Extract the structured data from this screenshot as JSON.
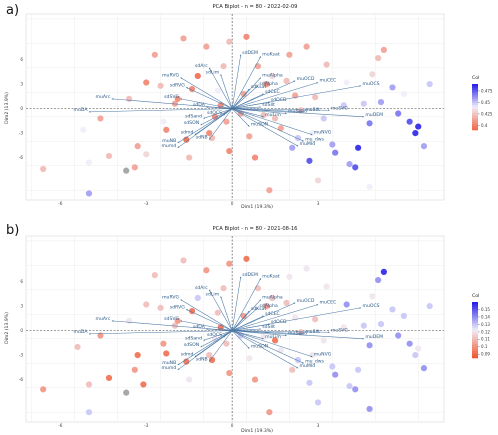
{
  "chart_data": [
    {
      "type": "scatter",
      "panel": "a)",
      "title": "PCA Biplot - n = 80 - 2022-02-09",
      "xlabel": "Dim1 (19.3%)",
      "ylabel": "Dim2 (13.9%)",
      "xlim": [
        -7.2,
        7.4
      ],
      "ylim": [
        -5.6,
        5.8
      ],
      "x_ticks": [
        -6,
        -3,
        0,
        3
      ],
      "y_ticks": [
        -6,
        -3,
        0,
        3,
        6
      ],
      "grid": true,
      "legend_title": "Col",
      "legend_position": "right",
      "legend_ticks": [
        0.475,
        0.45,
        0.425,
        0.4
      ],
      "color_range": [
        0.39,
        0.49
      ],
      "color_low": "#f16a4c",
      "color_high": "#2a22e8",
      "na_color": "#9e9e9e",
      "points": [
        [
          -6.6,
          -3.7,
          0.42
        ],
        [
          -5.2,
          -1.3,
          0.44
        ],
        [
          -5.0,
          -3.3,
          0.44
        ],
        [
          -5.0,
          -5.2,
          0.46
        ],
        [
          -4.6,
          -0.6,
          0.41
        ],
        [
          -4.3,
          -2.9,
          0.42
        ],
        [
          -3.7,
          -3.8,
          null
        ],
        [
          -3.4,
          -3.6,
          0.41
        ],
        [
          -3.3,
          -2.3,
          0.41
        ],
        [
          -3.0,
          -2.8,
          0.43
        ],
        [
          -3.0,
          1.6,
          0.4
        ],
        [
          -2.7,
          3.3,
          0.41
        ],
        [
          -2.5,
          1.4,
          0.42
        ],
        [
          -2.4,
          -0.8,
          0.44
        ],
        [
          -2.3,
          -1.3,
          0.4
        ],
        [
          -2.0,
          0.3,
          0.41
        ],
        [
          -1.9,
          0.6,
          0.4
        ],
        [
          -1.6,
          -1.9,
          0.39
        ],
        [
          -1.5,
          -3.0,
          0.42
        ],
        [
          -1.4,
          1.2,
          0.4
        ],
        [
          -1.2,
          2.0,
          0.39
        ],
        [
          -0.9,
          3.8,
          0.41
        ],
        [
          -0.8,
          -1.5,
          0.4
        ],
        [
          -0.7,
          -1.8,
          0.42
        ],
        [
          -0.6,
          -0.5,
          0.4
        ],
        [
          -0.5,
          1.1,
          0.44
        ],
        [
          -0.4,
          0.2,
          0.4
        ],
        [
          -0.2,
          -0.8,
          0.41
        ],
        [
          -0.1,
          -2.6,
          0.4
        ],
        [
          0.3,
          -0.3,
          0.41
        ],
        [
          0.5,
          4.4,
          0.4
        ],
        [
          0.6,
          -1.7,
          0.41
        ],
        [
          0.8,
          -3.0,
          0.4
        ],
        [
          0.9,
          2.6,
          0.41
        ],
        [
          1.1,
          -0.4,
          0.42
        ],
        [
          1.2,
          1.5,
          0.4
        ],
        [
          1.3,
          -5.0,
          0.41
        ],
        [
          1.4,
          2.0,
          0.43
        ],
        [
          1.5,
          -0.6,
          0.42
        ],
        [
          1.7,
          -1.2,
          0.41
        ],
        [
          2.0,
          3.3,
          0.41
        ],
        [
          2.1,
          -2.4,
          0.46
        ],
        [
          2.2,
          0.8,
          0.41
        ],
        [
          2.3,
          -1.8,
          0.45
        ],
        [
          2.4,
          -0.1,
          0.42
        ],
        [
          2.7,
          -3.2,
          0.48
        ],
        [
          2.8,
          -1.5,
          0.44
        ],
        [
          2.9,
          0.7,
          0.42
        ],
        [
          3.2,
          -0.6,
          0.45
        ],
        [
          3.3,
          2.7,
          0.42
        ],
        [
          3.5,
          -2.2,
          0.46
        ],
        [
          3.6,
          -2.7,
          0.47
        ],
        [
          3.9,
          0.2,
          0.45
        ],
        [
          4.0,
          1.6,
          0.44
        ],
        [
          4.1,
          -3.4,
          0.46
        ],
        [
          4.3,
          -3.6,
          0.48
        ],
        [
          4.4,
          -2.4,
          0.49
        ],
        [
          4.6,
          0.3,
          0.45
        ],
        [
          4.8,
          -0.9,
          0.47
        ],
        [
          4.9,
          2.1,
          0.43
        ],
        [
          5.2,
          0.4,
          0.46
        ],
        [
          5.3,
          3.6,
          0.41
        ],
        [
          5.6,
          1.3,
          0.46
        ],
        [
          5.8,
          -0.3,
          0.47
        ],
        [
          6.0,
          0.9,
          0.44
        ],
        [
          6.2,
          -0.8,
          0.48
        ],
        [
          6.4,
          -1.5,
          0.49
        ],
        [
          6.5,
          -1.1,
          0.49
        ],
        [
          6.7,
          -2.3,
          0.46
        ],
        [
          6.9,
          1.5,
          0.45
        ],
        [
          -0.1,
          4.1,
          0.42
        ],
        [
          -1.7,
          4.3,
          0.41
        ],
        [
          3.0,
          -4.4,
          0.43
        ],
        [
          4.8,
          -4.8,
          0.44
        ],
        [
          1.9,
          1.7,
          0.42
        ],
        [
          -3.6,
          0.6,
          0.42
        ],
        [
          0.4,
          0.9,
          0.41
        ],
        [
          -0.3,
          2.6,
          0.42
        ],
        [
          2.6,
          3.8,
          0.41
        ],
        [
          5.1,
          3.1,
          0.42
        ]
      ],
      "vectors": [
        {
          "label": "sdDEM",
          "x": 0.3,
          "y": 3.3
        },
        {
          "label": "muKsat",
          "x": 1.0,
          "y": 3.2
        },
        {
          "label": "sdArc",
          "x": -0.8,
          "y": 2.5
        },
        {
          "label": "sdLim",
          "x": -0.4,
          "y": 2.1
        },
        {
          "label": "muRVG",
          "x": -1.8,
          "y": 1.9
        },
        {
          "label": "muAlpha",
          "x": 1.0,
          "y": 1.9
        },
        {
          "label": "sdRVG",
          "x": -1.6,
          "y": 1.3
        },
        {
          "label": "sdAlpha",
          "x": 0.9,
          "y": 1.4
        },
        {
          "label": "sdSVG",
          "x": -1.8,
          "y": 0.6
        },
        {
          "label": "sdKsat",
          "x": 0.6,
          "y": 1.2
        },
        {
          "label": "sdCEC",
          "x": 1.1,
          "y": 0.9
        },
        {
          "label": "muOCD",
          "x": 2.2,
          "y": 1.7
        },
        {
          "label": "muCEC",
          "x": 3.0,
          "y": 1.6
        },
        {
          "label": "muOCS",
          "x": 4.5,
          "y": 1.4
        },
        {
          "label": "sdOCD",
          "x": 1.3,
          "y": 0.4
        },
        {
          "label": "sdSIlt",
          "x": 1.0,
          "y": 0.1
        },
        {
          "label": "muArc",
          "x": -4.2,
          "y": 0.6
        },
        {
          "label": "muDA",
          "x": -5.0,
          "y": -0.2
        },
        {
          "label": "sdDA",
          "x": -0.9,
          "y": 0.1
        },
        {
          "label": "sdOCS",
          "x": -0.3,
          "y": -0.4
        },
        {
          "label": "sdSand",
          "x": -1.0,
          "y": -0.6
        },
        {
          "label": "muLim",
          "x": 1.1,
          "y": -0.5
        },
        {
          "label": "muSand",
          "x": 1.9,
          "y": -0.3
        },
        {
          "label": "muSIlt",
          "x": 2.5,
          "y": -0.2
        },
        {
          "label": "muSVG",
          "x": 3.4,
          "y": -0.1
        },
        {
          "label": "muDEM",
          "x": 4.6,
          "y": -0.5
        },
        {
          "label": "sdSON",
          "x": -1.1,
          "y": -1.0
        },
        {
          "label": "muSON",
          "x": 0.6,
          "y": -1.1
        },
        {
          "label": "sdmd",
          "x": -1.3,
          "y": -1.6
        },
        {
          "label": "sdNB",
          "x": -0.8,
          "y": -1.9
        },
        {
          "label": "muNB",
          "x": -1.9,
          "y": -2.1
        },
        {
          "label": "mumd",
          "x": -1.9,
          "y": -2.4
        },
        {
          "label": "muNVG",
          "x": 2.8,
          "y": -1.6
        },
        {
          "label": "mu_dws",
          "x": 2.5,
          "y": -2.0
        },
        {
          "label": "muMId",
          "x": 2.3,
          "y": -2.3
        }
      ]
    },
    {
      "type": "scatter",
      "panel": "b)",
      "title": "PCA Biplot - n = 80 - 2021-08-16",
      "xlabel": "Dim1 (19.3%)",
      "ylabel": "Dim2 (13.9%)",
      "xlim": [
        -7.2,
        7.4
      ],
      "ylim": [
        -5.6,
        5.8
      ],
      "x_ticks": [
        -6,
        -3,
        0,
        3
      ],
      "y_ticks": [
        -6,
        -3,
        0,
        3,
        6
      ],
      "grid": true,
      "legend_title": "Col",
      "legend_position": "right",
      "legend_ticks": [
        0.15,
        0.14,
        0.13,
        0.12,
        0.11,
        0.1,
        0.09
      ],
      "color_range": [
        0.085,
        0.16
      ],
      "color_low": "#f15a36",
      "color_high": "#2a22e8",
      "na_color": "#9e9e9e",
      "points": [
        [
          -6.6,
          -3.6,
          0.1
        ],
        [
          -5.4,
          -1.0,
          0.11
        ],
        [
          -5.0,
          -3.3,
          0.11
        ],
        [
          -5.0,
          -5.0,
          0.13
        ],
        [
          -4.6,
          -0.3,
          0.1
        ],
        [
          -4.3,
          -2.9,
          0.09
        ],
        [
          -3.7,
          -3.8,
          null
        ],
        [
          -3.4,
          -2.4,
          0.1
        ],
        [
          -3.3,
          -1.5,
          0.09
        ],
        [
          -3.1,
          -3.3,
          0.09
        ],
        [
          -3.0,
          1.6,
          0.11
        ],
        [
          -2.7,
          3.4,
          0.11
        ],
        [
          -2.5,
          1.4,
          0.11
        ],
        [
          -2.4,
          -0.8,
          0.1
        ],
        [
          -2.3,
          -1.4,
          0.09
        ],
        [
          -2.0,
          0.3,
          0.11
        ],
        [
          -1.9,
          0.6,
          0.1
        ],
        [
          -1.6,
          -1.9,
          0.09
        ],
        [
          -1.5,
          -3.0,
          0.12
        ],
        [
          -1.4,
          1.2,
          0.09
        ],
        [
          -1.2,
          2.0,
          0.13
        ],
        [
          -0.9,
          3.7,
          0.1
        ],
        [
          -0.8,
          -1.5,
          0.11
        ],
        [
          -0.7,
          -1.8,
          0.09
        ],
        [
          -0.6,
          -0.5,
          0.12
        ],
        [
          -0.5,
          1.1,
          0.11
        ],
        [
          -0.4,
          0.2,
          0.09
        ],
        [
          -0.2,
          -0.8,
          0.11
        ],
        [
          -0.1,
          -2.6,
          0.1
        ],
        [
          0.3,
          -0.3,
          0.13
        ],
        [
          0.5,
          4.4,
          0.09
        ],
        [
          0.6,
          -1.7,
          0.12
        ],
        [
          0.8,
          -3.0,
          0.1
        ],
        [
          0.9,
          2.6,
          0.11
        ],
        [
          1.1,
          -0.4,
          0.12
        ],
        [
          1.2,
          1.5,
          0.1
        ],
        [
          1.3,
          -5.0,
          0.1
        ],
        [
          1.4,
          2.0,
          0.11
        ],
        [
          1.5,
          -0.6,
          0.09
        ],
        [
          1.7,
          -1.2,
          0.12
        ],
        [
          2.0,
          3.3,
          0.12
        ],
        [
          2.1,
          -2.4,
          0.11
        ],
        [
          2.2,
          0.8,
          0.12
        ],
        [
          2.3,
          -1.8,
          0.13
        ],
        [
          2.4,
          -0.1,
          0.11
        ],
        [
          2.7,
          -3.2,
          0.13
        ],
        [
          2.8,
          -1.5,
          0.12
        ],
        [
          2.9,
          0.7,
          0.11
        ],
        [
          3.2,
          -0.6,
          0.12
        ],
        [
          3.3,
          2.7,
          0.12
        ],
        [
          3.5,
          -2.2,
          0.13
        ],
        [
          3.6,
          -2.7,
          0.14
        ],
        [
          3.9,
          0.2,
          0.12
        ],
        [
          4.0,
          1.6,
          0.14
        ],
        [
          4.1,
          -3.4,
          0.13
        ],
        [
          4.3,
          -3.6,
          0.14
        ],
        [
          4.4,
          -2.4,
          0.13
        ],
        [
          4.6,
          0.3,
          0.13
        ],
        [
          4.8,
          -0.9,
          0.14
        ],
        [
          4.9,
          2.1,
          0.12
        ],
        [
          5.2,
          0.4,
          0.13
        ],
        [
          5.3,
          3.6,
          0.16
        ],
        [
          5.6,
          1.3,
          0.13
        ],
        [
          5.8,
          -0.3,
          0.14
        ],
        [
          6.0,
          0.9,
          0.13
        ],
        [
          6.2,
          -0.8,
          0.14
        ],
        [
          6.4,
          -1.5,
          0.13
        ],
        [
          6.5,
          -1.1,
          0.12
        ],
        [
          6.7,
          -2.3,
          0.14
        ],
        [
          6.9,
          1.5,
          0.13
        ],
        [
          -0.1,
          4.1,
          0.1
        ],
        [
          -1.7,
          4.3,
          0.11
        ],
        [
          3.0,
          -4.4,
          0.13
        ],
        [
          4.8,
          -4.8,
          0.14
        ],
        [
          1.9,
          1.7,
          0.11
        ],
        [
          -3.6,
          0.6,
          0.12
        ],
        [
          0.4,
          0.9,
          0.1
        ],
        [
          -0.3,
          2.6,
          0.11
        ],
        [
          2.6,
          3.8,
          0.12
        ],
        [
          5.1,
          3.1,
          0.14
        ]
      ],
      "vectors": [
        {
          "label": "sdDEM",
          "x": 0.3,
          "y": 3.3
        },
        {
          "label": "muKsat",
          "x": 1.0,
          "y": 3.2
        },
        {
          "label": "sdArc",
          "x": -0.8,
          "y": 2.5
        },
        {
          "label": "sdLim",
          "x": -0.4,
          "y": 2.1
        },
        {
          "label": "muRVG",
          "x": -1.8,
          "y": 1.9
        },
        {
          "label": "muAlpha",
          "x": 1.0,
          "y": 1.9
        },
        {
          "label": "sdRVG",
          "x": -1.6,
          "y": 1.3
        },
        {
          "label": "sdAlpha",
          "x": 0.9,
          "y": 1.4
        },
        {
          "label": "sdSVG",
          "x": -1.8,
          "y": 0.6
        },
        {
          "label": "sdKsat",
          "x": 0.6,
          "y": 1.2
        },
        {
          "label": "sdCEC",
          "x": 1.1,
          "y": 0.9
        },
        {
          "label": "muOCD",
          "x": 2.2,
          "y": 1.7
        },
        {
          "label": "muCEC",
          "x": 3.0,
          "y": 1.6
        },
        {
          "label": "muOCS",
          "x": 4.5,
          "y": 1.4
        },
        {
          "label": "sdOCD",
          "x": 1.3,
          "y": 0.4
        },
        {
          "label": "sdSIlt",
          "x": 1.0,
          "y": 0.1
        },
        {
          "label": "muArc",
          "x": -4.2,
          "y": 0.6
        },
        {
          "label": "muDA",
          "x": -5.0,
          "y": -0.2
        },
        {
          "label": "sdDA",
          "x": -0.9,
          "y": 0.1
        },
        {
          "label": "sdOCS",
          "x": -0.3,
          "y": -0.4
        },
        {
          "label": "sdSand",
          "x": -1.0,
          "y": -0.6
        },
        {
          "label": "muLim",
          "x": 1.1,
          "y": -0.5
        },
        {
          "label": "muSand",
          "x": 1.9,
          "y": -0.3
        },
        {
          "label": "muSIlt",
          "x": 2.5,
          "y": -0.2
        },
        {
          "label": "muSVG",
          "x": 3.4,
          "y": -0.1
        },
        {
          "label": "muDEM",
          "x": 4.6,
          "y": -0.5
        },
        {
          "label": "sdSON",
          "x": -1.1,
          "y": -1.0
        },
        {
          "label": "muSON",
          "x": 0.6,
          "y": -1.1
        },
        {
          "label": "sdmd",
          "x": -1.3,
          "y": -1.6
        },
        {
          "label": "sdNB",
          "x": -0.8,
          "y": -1.9
        },
        {
          "label": "muNB",
          "x": -1.9,
          "y": -2.1
        },
        {
          "label": "mumd",
          "x": -1.9,
          "y": -2.4
        },
        {
          "label": "muNVG",
          "x": 2.8,
          "y": -1.6
        },
        {
          "label": "mu_dws",
          "x": 2.5,
          "y": -2.0
        },
        {
          "label": "muMId",
          "x": 2.3,
          "y": -2.3
        }
      ]
    }
  ]
}
